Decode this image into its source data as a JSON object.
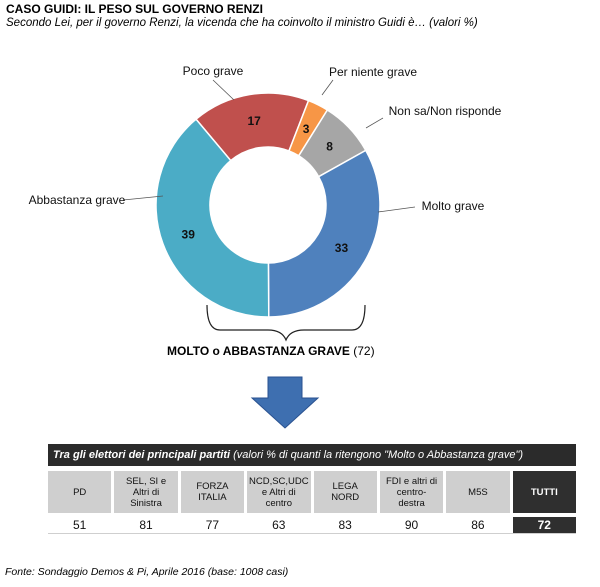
{
  "title": "CASO GUIDI: IL PESO SUL GOVERNO RENZI",
  "subtitle": "Secondo Lei, per il governo Renzi, la vicenda che ha coinvolto il ministro Guidi è… (valori %)",
  "chart_data": {
    "type": "pie",
    "categories": [
      "Poco grave",
      "Per niente grave",
      "Non sa/Non risponde",
      "Molto grave",
      "Abbastanza grave"
    ],
    "values": [
      17,
      3,
      8,
      33,
      39
    ],
    "colors": [
      "#c0504d",
      "#f79646",
      "#a6a6a6",
      "#4f81bd",
      "#4bacc6"
    ],
    "donut": true
  },
  "summary": {
    "label": "MOLTO o ABBASTANZA  GRAVE",
    "value": "(72)"
  },
  "table": {
    "header_bold": "Tra gli elettori dei principali partiti",
    "header_rest": " (valori % di quanti la ritengono \"Molto o Abbastanza grave\")",
    "parties": [
      "PD",
      "SEL, SI  e\nAltri di\nSinistra",
      "FORZA\nITALIA",
      "NCD,SC,UDC\ne  Altri di\ncentro",
      "LEGA\nNORD",
      "FDI e altri di\ncentro-\ndestra",
      "M5S",
      "TUTTI"
    ],
    "values": [
      "51",
      "81",
      "77",
      "63",
      "83",
      "90",
      "86",
      "72"
    ]
  },
  "source": "Fonte: Sondaggio Demos & Pi, Aprile 2016 (base: 1008 casi)"
}
